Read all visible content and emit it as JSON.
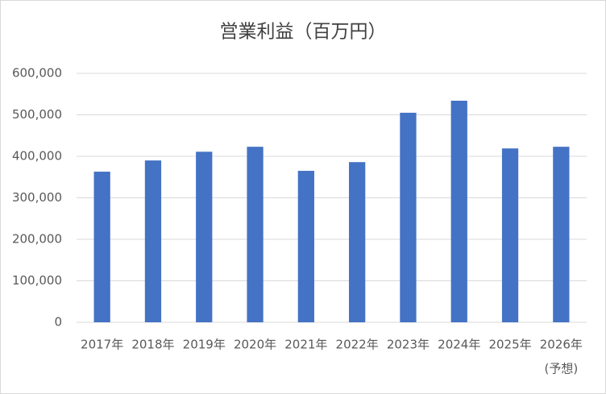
{
  "chart_data": {
    "type": "bar",
    "title": "営業利益（百万円）",
    "categories": [
      "2017年",
      "2018年",
      "2019年",
      "2020年",
      "2021年",
      "2022年",
      "2023年",
      "2024年",
      "2025年",
      "2026年"
    ],
    "forecast_label": "(予想)",
    "values": [
      363000,
      390000,
      411000,
      423000,
      365000,
      386000,
      505000,
      534000,
      419000,
      423000
    ],
    "color": "#4472c4",
    "ylim": [
      0,
      600000
    ],
    "yticks": [
      0,
      {
        "value": 100000,
        "label": "100,000"
      },
      {
        "value": 200000,
        "label": "200,000"
      },
      {
        "value": 300000,
        "label": "300,000"
      },
      {
        "value": 400000,
        "label": "400,000"
      },
      {
        "value": 500000,
        "label": "500,000"
      },
      {
        "value": 600000,
        "label": "600,000"
      }
    ],
    "grid": true
  }
}
